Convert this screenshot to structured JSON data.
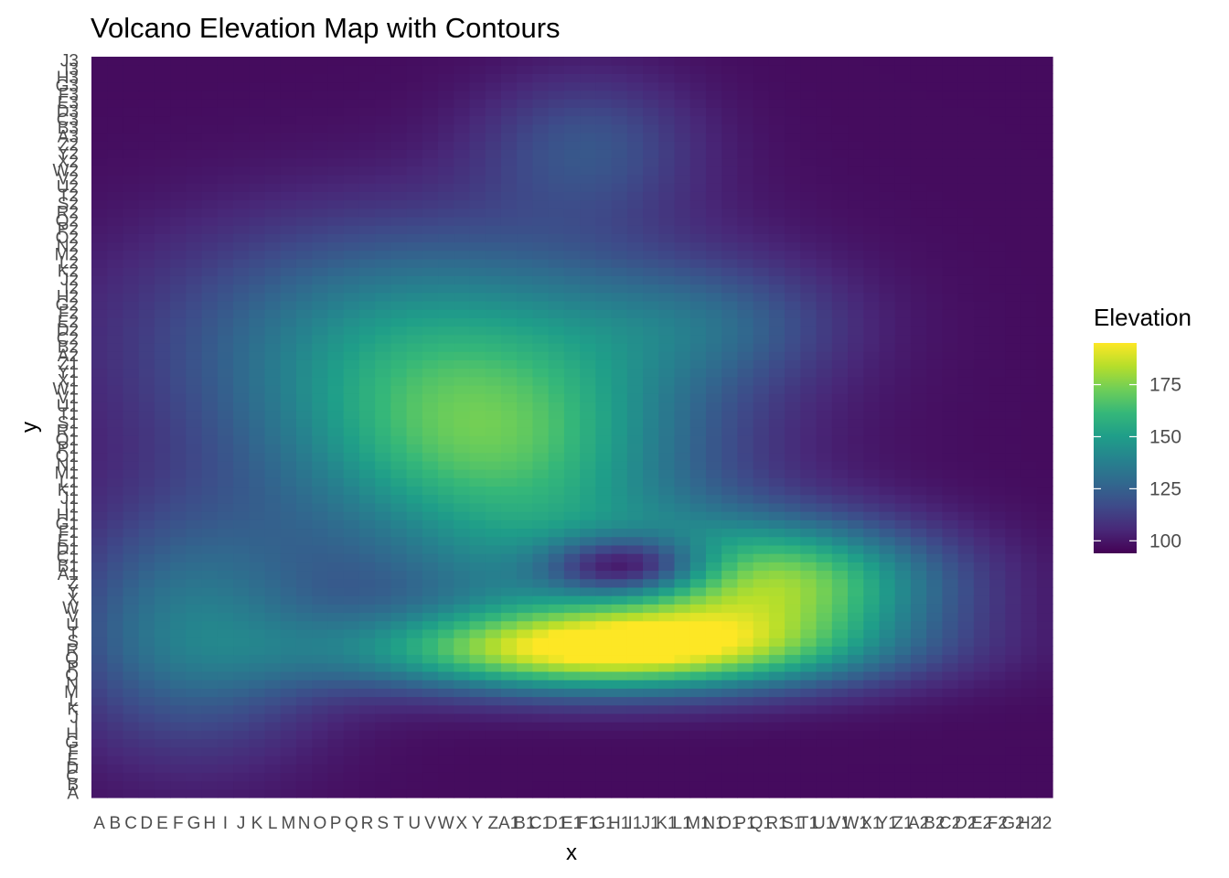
{
  "chart_data": {
    "type": "heatmap",
    "title": "Volcano Elevation Map with Contours",
    "xlabel": "x",
    "ylabel": "y",
    "grid": false,
    "legend_position": "right",
    "colormap": "viridis",
    "colormap_colors": [
      "#440154",
      "#482878",
      "#3e4a89",
      "#31688e",
      "#26828e",
      "#1f9e89",
      "#35b779",
      "#6ece58",
      "#b5de2b",
      "#fde725"
    ],
    "x_categories": [
      "A",
      "B",
      "C",
      "D",
      "E",
      "F",
      "G",
      "H",
      "I",
      "J",
      "K",
      "L",
      "M",
      "N",
      "O",
      "P",
      "Q",
      "R",
      "S",
      "T",
      "U",
      "V",
      "W",
      "X",
      "Y",
      "Z",
      "A1",
      "B1",
      "C1",
      "D1",
      "E1",
      "F1",
      "G1",
      "H1",
      "I1",
      "J1",
      "K1",
      "L1",
      "M1",
      "N1",
      "O1",
      "P1",
      "Q1",
      "R1",
      "S1",
      "T1",
      "U1",
      "V1",
      "W1",
      "X1",
      "Y1",
      "Z1",
      "A2",
      "B2",
      "C2",
      "D2",
      "E2",
      "F2",
      "G2",
      "H2",
      "I2"
    ],
    "y_categories": [
      "A",
      "B",
      "C",
      "D",
      "E",
      "F",
      "G",
      "H",
      "I",
      "J",
      "K",
      "L",
      "M",
      "N",
      "O",
      "P",
      "Q",
      "R",
      "S",
      "T",
      "U",
      "V",
      "W",
      "X",
      "Y",
      "Z",
      "A1",
      "B1",
      "C1",
      "D1",
      "E1",
      "F1",
      "G1",
      "H1",
      "I1",
      "J1",
      "K1",
      "L1",
      "M1",
      "N1",
      "O1",
      "P1",
      "Q1",
      "R1",
      "S1",
      "T1",
      "U1",
      "V1",
      "W1",
      "X1",
      "Y1",
      "Z1",
      "A2",
      "B2",
      "C2",
      "D2",
      "E2",
      "F2",
      "G2",
      "H2",
      "I2",
      "J2",
      "K2",
      "L2",
      "M2",
      "N2",
      "O2",
      "P2",
      "Q2",
      "R2",
      "S2",
      "T2",
      "U2",
      "V2",
      "W2",
      "X2",
      "Y2",
      "Z2",
      "A3",
      "B3",
      "C3",
      "D3",
      "E3",
      "F3",
      "G3",
      "H3",
      "I3",
      "J3"
    ],
    "x_tick_labels": [
      "A",
      "B",
      "C",
      "D",
      "E",
      "F",
      "G",
      "H",
      "I",
      "J",
      "K",
      "L",
      "M",
      "N",
      "O",
      "P",
      "Q",
      "R",
      "S",
      "T",
      "U",
      "V",
      "W",
      "X",
      "Y",
      "Z",
      "A1",
      "B1",
      "C1",
      "D1",
      "E1",
      "F1",
      "G1",
      "H1",
      "I1",
      "J1",
      "K1",
      "L1",
      "M1",
      "N1",
      "O1",
      "P1",
      "Q1",
      "R1",
      "S1",
      "T1",
      "U1",
      "V1",
      "W1",
      "X1",
      "Y1",
      "Z1",
      "A2",
      "B2",
      "C2",
      "D2",
      "E2",
      "F2",
      "G2",
      "H2",
      "I2"
    ],
    "y_tick_labels": [
      "A",
      "B",
      "C",
      "D",
      "E",
      "F",
      "G",
      "H",
      "I",
      "J",
      "K",
      "L",
      "M",
      "N",
      "O",
      "P",
      "Q",
      "R",
      "S",
      "T",
      "U",
      "V",
      "W",
      "X",
      "Y",
      "Z",
      "A1",
      "B1",
      "C1",
      "D1",
      "E1",
      "F1",
      "G1",
      "H1",
      "I1",
      "J1",
      "K1",
      "L1",
      "M1",
      "N1",
      "O1",
      "P1",
      "Q1",
      "R1",
      "S1",
      "T1",
      "U1",
      "V1",
      "W1",
      "X1",
      "Y1",
      "Z1",
      "A2",
      "B2",
      "C2",
      "D2",
      "E2",
      "F2",
      "G2",
      "H2",
      "I2",
      "J2",
      "K2",
      "L2",
      "M2",
      "N2",
      "O2",
      "P2",
      "Q2",
      "R2",
      "S2",
      "T2",
      "U2",
      "V2",
      "W2",
      "X2",
      "Y2",
      "Z2",
      "A3",
      "B3",
      "C3",
      "D3",
      "E3",
      "F3",
      "G3",
      "H3",
      "I3",
      "J3"
    ],
    "value_range": [
      94,
      195
    ],
    "legend": {
      "title": "Elevation",
      "ticks": [
        100,
        125,
        150,
        175
      ]
    },
    "surface_features": [
      {
        "kind": "background",
        "value": 97
      },
      {
        "kind": "gaussian",
        "x": 32,
        "y": 17,
        "sx": 11,
        "sy": 3.5,
        "amplitude": 92
      },
      {
        "kind": "gaussian",
        "x": 44,
        "y": 25,
        "sx": 7,
        "sy": 5,
        "amplitude": 62
      },
      {
        "kind": "gaussian",
        "x": 25,
        "y": 40,
        "sx": 9,
        "sy": 9,
        "amplitude": 55
      },
      {
        "kind": "gaussian",
        "x": 21,
        "y": 54,
        "sx": 12,
        "sy": 10,
        "amplitude": 45
      },
      {
        "kind": "gaussian",
        "x": 31,
        "y": 77,
        "sx": 5,
        "sy": 6,
        "amplitude": 22
      },
      {
        "kind": "gaussian",
        "x": 33,
        "y": 26,
        "sx": 9,
        "sy": 6,
        "amplitude": 35
      },
      {
        "kind": "gaussian",
        "x": 6,
        "y": 20,
        "sx": 6,
        "sy": 10,
        "amplitude": 38
      },
      {
        "kind": "gaussian",
        "x": 39,
        "y": 56,
        "sx": 6,
        "sy": 5,
        "amplitude": 18
      },
      {
        "kind": "gaussian",
        "x": 33.5,
        "y": 27,
        "sx": 3.8,
        "sy": 2.6,
        "amplitude": -62
      }
    ]
  }
}
